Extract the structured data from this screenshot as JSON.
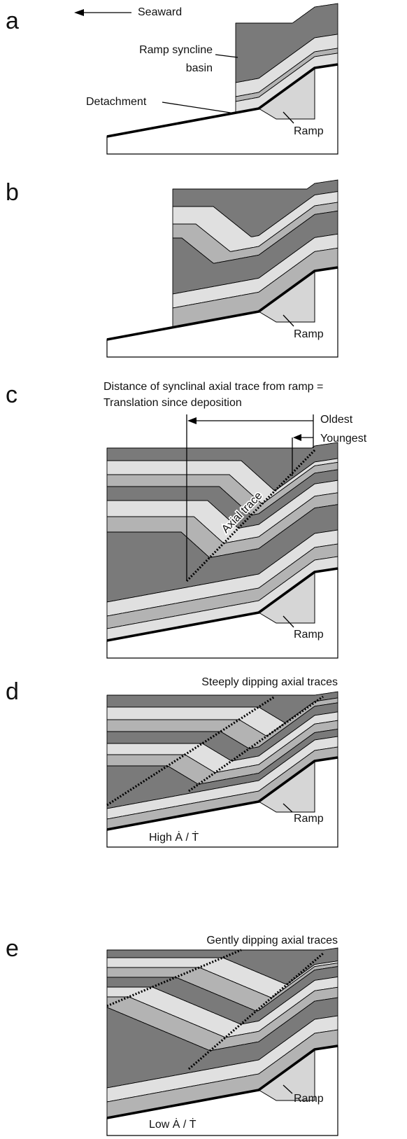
{
  "panels": [
    {
      "letter": "a",
      "seaward": "Seaward",
      "basin_label": [
        "Ramp syncline",
        "basin"
      ],
      "detachment": "Detachment",
      "ramp": "Ramp"
    },
    {
      "letter": "b",
      "ramp": "Ramp"
    },
    {
      "letter": "c",
      "caption": [
        "Distance of synclinal axial trace from ramp =",
        "Translation since deposition"
      ],
      "oldest": "Oldest",
      "youngest": "Youngest",
      "axial_trace": "Axial trace",
      "ramp": "Ramp"
    },
    {
      "letter": "d",
      "title": "Steeply dipping axial traces",
      "ratio": "High Ȧ / Ṫ",
      "ramp": "Ramp"
    },
    {
      "letter": "e",
      "title": "Gently dipping axial traces",
      "ratio": "Low Ȧ / Ṫ",
      "ramp": "Ramp"
    }
  ]
}
